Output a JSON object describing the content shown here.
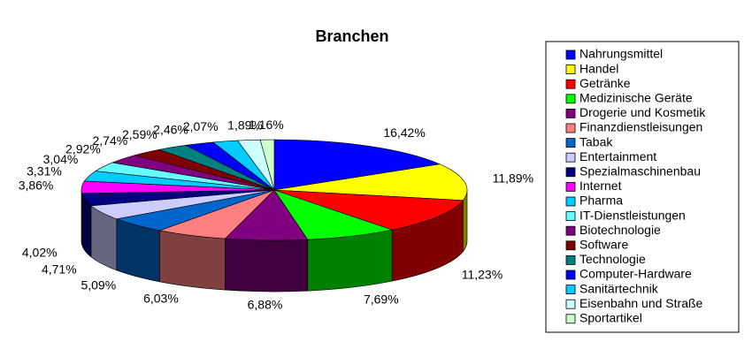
{
  "chart_data": {
    "type": "pie3d",
    "title": "Branchen",
    "categories": [
      "Nahrungsmittel",
      "Handel",
      "Getränke",
      "Medizinische Geräte",
      "Drogerie und Kosmetik",
      "Finanzdienstleisungen",
      "Tabak",
      "Entertainment",
      "Spezialmaschinenbau",
      "Internet",
      "Pharma",
      "IT-Dienstleistungen",
      "Biotechnologie",
      "Software",
      "Technologie",
      "Computer-Hardware",
      "Sanitärtechnik",
      "Eisenbahn und Straße",
      "Sportartikel"
    ],
    "values": [
      16.42,
      11.89,
      11.23,
      7.69,
      6.88,
      6.03,
      5.09,
      4.71,
      4.02,
      3.86,
      3.31,
      3.04,
      2.92,
      2.74,
      2.59,
      2.46,
      2.07,
      1.89,
      1.16
    ],
    "value_labels": [
      "16,42%",
      "11,89%",
      "11,23%",
      "7,69%",
      "6,88%",
      "6,03%",
      "5,09%",
      "4,71%",
      "4,02%",
      "3,86%",
      "3,31%",
      "3,04%",
      "2,92%",
      "2,74%",
      "2,59%",
      "2,46%",
      "2,07%",
      "1,89%",
      "1,16%"
    ],
    "colors": [
      "#0000FF",
      "#FFFF00",
      "#FF0000",
      "#00FF00",
      "#800080",
      "#FF8080",
      "#0066CC",
      "#CCCCFF",
      "#000080",
      "#FF00FF",
      "#00CCFF",
      "#66FFFF",
      "#800080",
      "#800000",
      "#008080",
      "#0000FF",
      "#00CCFF",
      "#CCFFFF",
      "#CCFFCC"
    ],
    "legend": "right"
  }
}
